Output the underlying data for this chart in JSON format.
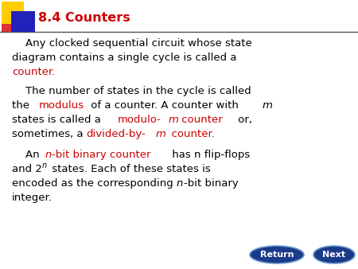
{
  "title": "8.4 Counters",
  "title_color": "#cc0000",
  "title_fontsize": 11.5,
  "bg_color": "#ffffff",
  "header_line_color": "#555555",
  "red_color": "#cc0000",
  "black_color": "#000000",
  "body_fontsize": 9.5,
  "button_color": "#1a3a8a",
  "button_text_color": "#ffffff",
  "return_label": "Return",
  "next_label": "Next",
  "sq_yellow": "#ffcc00",
  "sq_red": "#dd3333",
  "sq_blue": "#2222bb"
}
